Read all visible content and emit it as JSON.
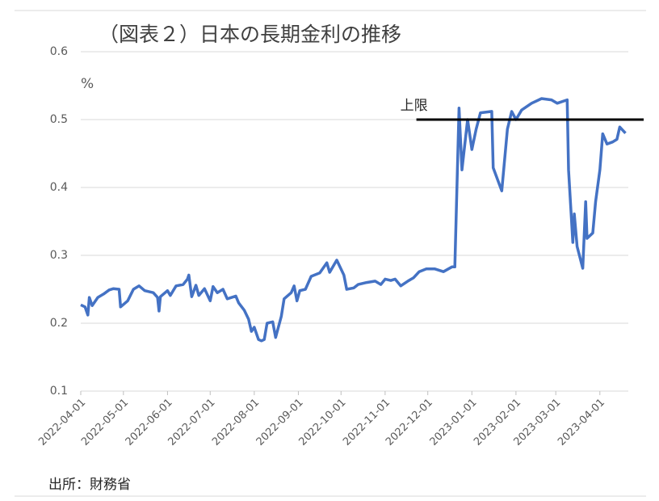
{
  "chart_data": {
    "type": "line",
    "title": "（図表２）日本の長期金利の推移",
    "y_label": "%",
    "source": "出所：財務省",
    "color": "#4472c4",
    "x": [
      "2022-04-01",
      "2022-04-04",
      "2022-04-06",
      "2022-04-07",
      "2022-04-09",
      "2022-04-13",
      "2022-04-17",
      "2022-04-21",
      "2022-04-24",
      "2022-04-28",
      "2022-04-29",
      "2022-05-04",
      "2022-05-08",
      "2022-05-12",
      "2022-05-16",
      "2022-05-22",
      "2022-05-25",
      "2022-05-26",
      "2022-05-27",
      "2022-06-01",
      "2022-06-03",
      "2022-06-07",
      "2022-06-12",
      "2022-06-15",
      "2022-06-16",
      "2022-06-18",
      "2022-06-21",
      "2022-06-23",
      "2022-06-27",
      "2022-07-01",
      "2022-07-03",
      "2022-07-06",
      "2022-07-10",
      "2022-07-13",
      "2022-07-19",
      "2022-07-21",
      "2022-07-25",
      "2022-07-28",
      "2022-07-30",
      "2022-08-01",
      "2022-08-04",
      "2022-08-06",
      "2022-08-08",
      "2022-08-10",
      "2022-08-14",
      "2022-08-16",
      "2022-08-20",
      "2022-08-22",
      "2022-08-27",
      "2022-08-29",
      "2022-08-31",
      "2022-09-02",
      "2022-09-06",
      "2022-09-10",
      "2022-09-16",
      "2022-09-21",
      "2022-09-23",
      "2022-09-28",
      "2022-10-03",
      "2022-10-05",
      "2022-10-10",
      "2022-10-13",
      "2022-10-19",
      "2022-10-25",
      "2022-10-29",
      "2022-11-01",
      "2022-11-05",
      "2022-11-08",
      "2022-11-12",
      "2022-11-17",
      "2022-11-21",
      "2022-11-25",
      "2022-11-30",
      "2022-12-06",
      "2022-12-12",
      "2022-12-18",
      "2022-12-20",
      "2022-12-23",
      "2022-12-25",
      "2022-12-29",
      "2023-01-01",
      "2023-01-04",
      "2023-01-07",
      "2023-01-15",
      "2023-01-16",
      "2023-01-22",
      "2023-01-26",
      "2023-01-29",
      "2023-02-01",
      "2023-02-05",
      "2023-02-12",
      "2023-02-19",
      "2023-02-26",
      "2023-03-02",
      "2023-03-09",
      "2023-03-10",
      "2023-03-13",
      "2023-03-14",
      "2023-03-16",
      "2023-03-20",
      "2023-03-22",
      "2023-03-23",
      "2023-03-27",
      "2023-03-29",
      "2023-04-01",
      "2023-04-03",
      "2023-04-06",
      "2023-04-10",
      "2023-04-13",
      "2023-04-15",
      "2023-04-19"
    ],
    "values": [
      0.227,
      0.224,
      0.212,
      0.238,
      0.226,
      0.238,
      0.243,
      0.249,
      0.251,
      0.25,
      0.224,
      0.233,
      0.25,
      0.255,
      0.248,
      0.245,
      0.238,
      0.218,
      0.239,
      0.248,
      0.241,
      0.255,
      0.257,
      0.265,
      0.271,
      0.239,
      0.256,
      0.241,
      0.251,
      0.233,
      0.254,
      0.245,
      0.25,
      0.236,
      0.24,
      0.23,
      0.219,
      0.206,
      0.188,
      0.194,
      0.176,
      0.174,
      0.176,
      0.2,
      0.202,
      0.179,
      0.21,
      0.236,
      0.245,
      0.255,
      0.233,
      0.248,
      0.25,
      0.269,
      0.274,
      0.289,
      0.275,
      0.293,
      0.271,
      0.25,
      0.252,
      0.257,
      0.26,
      0.262,
      0.257,
      0.265,
      0.263,
      0.265,
      0.255,
      0.262,
      0.267,
      0.276,
      0.28,
      0.28,
      0.276,
      0.283,
      0.283,
      0.517,
      0.426,
      0.5,
      0.456,
      0.486,
      0.51,
      0.512,
      0.429,
      0.395,
      0.486,
      0.512,
      0.5,
      0.514,
      0.524,
      0.531,
      0.529,
      0.524,
      0.529,
      0.426,
      0.319,
      0.361,
      0.313,
      0.281,
      0.379,
      0.325,
      0.333,
      0.379,
      0.426,
      0.479,
      0.464,
      0.467,
      0.471,
      0.489,
      0.48
    ],
    "xlim": [
      "2022-04-01",
      "2023-04-21"
    ],
    "xticks": [
      "2022-04-01",
      "2022-05-01",
      "2022-06-01",
      "2022-07-01",
      "2022-08-01",
      "2022-09-01",
      "2022-10-01",
      "2022-11-01",
      "2022-12-01",
      "2023-01-01",
      "2023-02-01",
      "2023-03-01",
      "2023-04-01"
    ],
    "ylim": [
      0.1,
      0.6
    ],
    "yticks": [
      0.1,
      0.2,
      0.3,
      0.4,
      0.5,
      0.6
    ],
    "grid": true,
    "annotation": {
      "label": "上限",
      "value": 0.5,
      "start": "2022-11-23",
      "color": "#000000"
    }
  }
}
